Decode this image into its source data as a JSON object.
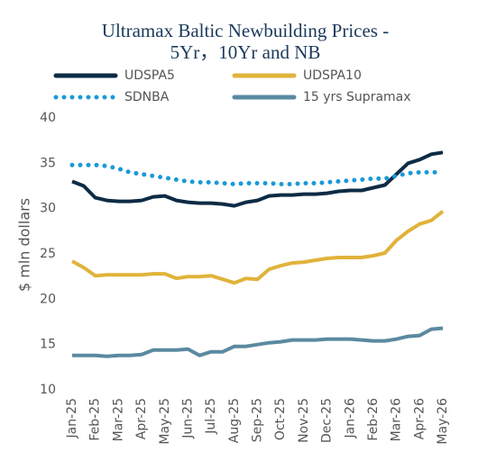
{
  "chart_data": {
    "type": "line",
    "title": [
      "Ultramax Baltic Newbuilding Prices -",
      "5Yr，10Yr and NB"
    ],
    "y_label": "$ mln dollars",
    "categories": [
      "Jan-25",
      null,
      "Feb-25",
      null,
      "Mar-25",
      null,
      "Apr-25",
      null,
      "May-25",
      null,
      "Jun-25",
      null,
      "Jul-25",
      null,
      "Aug-25",
      null,
      "Sep-25",
      null,
      "Oct-25",
      null,
      "Nov-25",
      null,
      "Dec-25",
      null,
      "Jan-26",
      null,
      "Feb-26",
      null,
      "Mar-26",
      null,
      "Apr-26",
      null,
      "May-26"
    ],
    "series": [
      {
        "name": "UDSPA5",
        "color": "#0d2b45",
        "dash": false,
        "values": [
          33,
          32.5,
          31.2,
          30.9,
          30.8,
          30.8,
          30.9,
          31.3,
          31.4,
          30.9,
          30.7,
          30.6,
          30.6,
          30.5,
          30.3,
          30.7,
          30.9,
          31.4,
          31.5,
          31.5,
          31.6,
          31.6,
          31.7,
          31.9,
          32.0,
          32.0,
          32.3,
          32.6,
          33.8,
          35.0,
          35.4,
          36.0,
          36.2
        ]
      },
      {
        "name": "UDSPA10",
        "color": "#e0b33a",
        "dash": false,
        "values": [
          24.2,
          23.5,
          22.6,
          22.7,
          22.7,
          22.7,
          22.7,
          22.8,
          22.8,
          22.3,
          22.5,
          22.5,
          22.6,
          22.2,
          21.8,
          22.3,
          22.2,
          23.3,
          23.7,
          24.0,
          24.1,
          24.3,
          24.5,
          24.6,
          24.6,
          24.6,
          24.8,
          25.1,
          26.5,
          27.5,
          28.3,
          28.7,
          29.7
        ]
      },
      {
        "name": "SDNBA",
        "color": "#1a9ad6",
        "dash": true,
        "values": [
          34.8,
          34.8,
          34.8,
          34.7,
          34.4,
          34.0,
          33.8,
          33.6,
          33.4,
          33.2,
          33.0,
          32.9,
          32.9,
          32.8,
          32.7,
          32.8,
          32.8,
          32.8,
          32.7,
          32.7,
          32.8,
          32.8,
          32.9,
          33.0,
          33.1,
          33.2,
          33.3,
          33.3,
          33.6,
          33.9,
          34.0,
          34.0,
          34.0
        ]
      },
      {
        "name": "15 yrs Supramax",
        "color": "#5a8aa0",
        "dash": false,
        "values": [
          13.8,
          13.8,
          13.8,
          13.7,
          13.8,
          13.8,
          13.9,
          14.4,
          14.4,
          14.4,
          14.5,
          13.8,
          14.2,
          14.2,
          14.8,
          14.8,
          15.0,
          15.2,
          15.3,
          15.5,
          15.5,
          15.5,
          15.6,
          15.6,
          15.6,
          15.5,
          15.4,
          15.4,
          15.6,
          15.9,
          16.0,
          16.7,
          16.8
        ]
      }
    ],
    "ylim": [
      10,
      40
    ],
    "yticks": [
      10,
      15,
      20,
      25,
      30,
      35,
      40
    ],
    "grid": false
  }
}
